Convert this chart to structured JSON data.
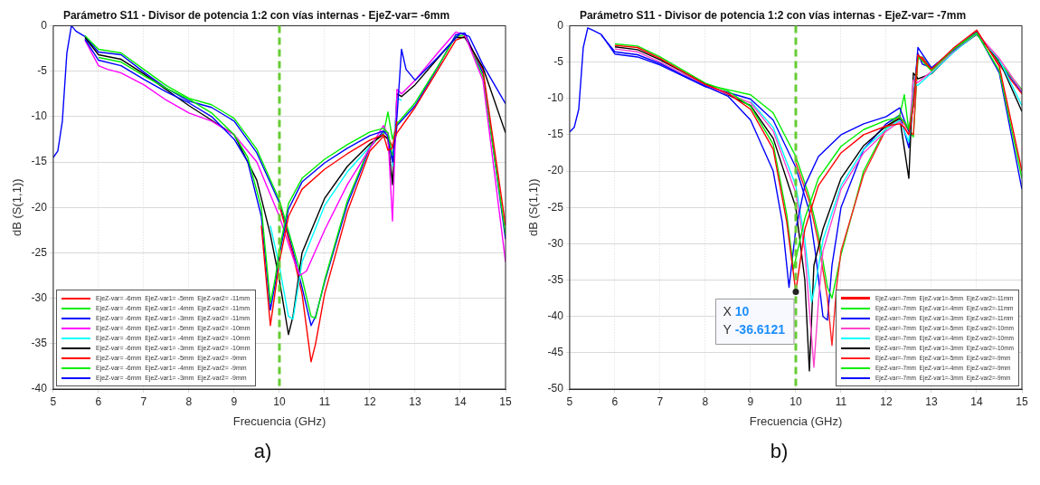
{
  "chart_data": [
    {
      "type": "line",
      "title": "Parámetro S11 - Divisor de potencia 1:2 con vías internas - EjeZ-var= -6mm",
      "xlabel": "Frecuencia (GHz)",
      "ylabel": "dB (S(1,1))",
      "xlim": [
        5,
        15
      ],
      "xticks": [
        5,
        6,
        7,
        8,
        9,
        10,
        11,
        12,
        13,
        14,
        15
      ],
      "ylim": [
        -40,
        0
      ],
      "yticks": [
        -40,
        -35,
        -30,
        -25,
        -20,
        -15,
        -10,
        -5,
        0
      ],
      "grid": true,
      "legend": "bottom left",
      "line_style": "solid",
      "marker": "none",
      "ref_lines": [
        {
          "axis": "x",
          "value": 10,
          "color": "#66cc33",
          "line_style": "dashed"
        }
      ],
      "annotations": [
        "a)"
      ],
      "series": [
        {
          "name": "EjeZ-var= -6mm  EjeZ-var1= -5mm  EjeZ-var2= -11mm",
          "color": "#ff0000",
          "x": [
            9.6,
            9.8,
            9.9,
            10,
            10.2,
            10.5,
            11,
            11.5,
            12,
            12.3,
            12.4,
            12.5,
            12.6
          ],
          "values": [
            -22,
            -33,
            -29.5,
            -26,
            -21,
            -18,
            -15.8,
            -14.1,
            -12.6,
            -12,
            -13.7,
            -13.5,
            -10.5
          ]
        },
        {
          "name": "EjeZ-var= -6mm  EjeZ-var1= -4mm  EjeZ-var2= -11mm",
          "color": "#00ee00",
          "x": [
            6,
            6.5,
            7,
            7.5,
            8,
            8.5,
            9,
            9.3,
            9.6,
            9.8,
            9.9,
            10,
            10.2,
            10.5,
            11,
            11.5,
            12,
            12.3,
            12.4,
            12.5
          ],
          "values": [
            -3.5,
            -4,
            -5.5,
            -6.9,
            -8.1,
            -9.6,
            -12,
            -14.5,
            -20,
            -30.5,
            -28,
            -24.7,
            -19.6,
            -16.8,
            -14.7,
            -13.1,
            -11.7,
            -11.3,
            -11.8,
            -14.3
          ]
        },
        {
          "name": "EjeZ-var= -6mm  EjeZ-var1= -3mm  EjeZ-var2= -11mm",
          "color": "#0000ff",
          "x": [
            5.7,
            6,
            6.5,
            7,
            7.5,
            8,
            8.5,
            9,
            9.3,
            9.6,
            9.8,
            9.9,
            10,
            10.2,
            10.5,
            11,
            11.5,
            12,
            12.3,
            12.4,
            12.5,
            12.6,
            12.7,
            12.8,
            13,
            13.5,
            14,
            14.2,
            14.5,
            15
          ],
          "values": [
            -1.5,
            -3.8,
            -4.4,
            -5.9,
            -7.3,
            -8.5,
            -10,
            -12.5,
            -15,
            -21,
            -31.3,
            -28.6,
            -25.2,
            -20.2,
            -17.2,
            -15.1,
            -13.5,
            -12.1,
            -11.6,
            -12.2,
            -15,
            -10,
            -2.6,
            -4.8,
            -6,
            -3.5,
            -0.8,
            -1.2,
            -4.3,
            -8.6
          ]
        },
        {
          "name": "EjeZ-var= -6mm  EjeZ-var1= -5mm  EjeZ-var2= -10mm",
          "color": "#ff00ff",
          "x": [
            5.7,
            6,
            6.2,
            6.5,
            7,
            7.5,
            8,
            8.5,
            9,
            9.5,
            10,
            10.3,
            10.45,
            10.6,
            11,
            11.5,
            12,
            12.3,
            12.4,
            12.5,
            12.6,
            12.7,
            13,
            13.5,
            13.9,
            14.1,
            14.5,
            15
          ],
          "values": [
            -1.6,
            -4.4,
            -4.8,
            -5.2,
            -6.5,
            -8.2,
            -9.6,
            -10.5,
            -12,
            -15,
            -21,
            -25.5,
            -27.5,
            -27,
            -22.5,
            -17.5,
            -13.5,
            -11,
            -12,
            -21.5,
            -7,
            -7.5,
            -6,
            -3,
            -0.7,
            -1,
            -6,
            -26
          ]
        },
        {
          "name": "EjeZ-var= -6mm  EjeZ-var1= -4mm  EjeZ-var2= -10mm",
          "color": "#00ffff",
          "x": [
            9.8,
            10,
            10.2,
            10.3,
            10.5,
            11,
            11.5,
            12,
            12.3,
            12.4,
            12.5,
            12.6,
            12.7
          ],
          "values": [
            -22,
            -26.5,
            -32,
            -32.3,
            -26,
            -19.8,
            -16.1,
            -13.3,
            null,
            null,
            -15.5,
            -8,
            -8.2
          ]
        },
        {
          "name": "EjeZ-var= -6mm  EjeZ-var1= -3mm  EjeZ-var2= -10mm",
          "color": "#000000",
          "x": [
            5.7,
            6,
            6.5,
            7,
            8,
            9,
            9.5,
            9.8,
            10,
            10.2,
            10.3,
            10.5,
            11,
            11.5,
            12,
            12.3,
            12.4,
            12.5,
            12.6,
            12.7,
            13,
            13.5,
            13.9,
            14.1,
            14.5,
            15
          ],
          "values": [
            -1.3,
            -3.2,
            -3.7,
            -5.3,
            -8.8,
            -12,
            -17,
            -23,
            -28,
            -34,
            -32,
            -25,
            -19,
            -15.5,
            -13,
            -12,
            -12.5,
            -17.5,
            -7.5,
            -7.8,
            -6.5,
            -3.6,
            -1.3,
            -1.3,
            -4.6,
            -11.8
          ]
        },
        {
          "name": "EjeZ-var= -6mm  EjeZ-var1= -5mm  EjeZ-var2= -9mm",
          "color": "#ff0000",
          "x": [
            10,
            10.3,
            10.5,
            10.7,
            10.8,
            11,
            11.5,
            12,
            12.3,
            12.4,
            12.5,
            12.6,
            13,
            13.5,
            13.9,
            14.1,
            14.5,
            15
          ],
          "values": [
            -19.8,
            -25.2,
            -29.5,
            -37,
            -35,
            -29.5,
            -20.5,
            -13.8,
            -12.2,
            -12.3,
            -13.3,
            -11.8,
            -9,
            -4.9,
            -1.6,
            -1.2,
            -4.8,
            -22
          ]
        },
        {
          "name": "EjeZ-var= -6mm  EjeZ-var1= -4mm  EjeZ-var2= -9mm",
          "color": "#00ee00",
          "x": [
            5.7,
            6,
            6.5,
            7,
            7.5,
            8,
            8.5,
            9,
            9.5,
            10,
            10.3,
            10.5,
            10.7,
            10.8,
            11,
            11.5,
            12,
            12.3,
            12.4,
            12.5,
            12.6,
            13,
            13.5,
            13.9,
            14.1,
            14.5,
            15
          ],
          "values": [
            -1.1,
            -2.6,
            -3,
            -4.8,
            -6.6,
            -8,
            -8.7,
            -10.2,
            -13.6,
            -19.2,
            -24.3,
            -27.8,
            -32,
            -32.2,
            -28,
            -19.3,
            -13.2,
            -11.9,
            -9.5,
            -12.5,
            -10.8,
            -8.5,
            -4.5,
            -1.2,
            -1,
            -5.6,
            -23
          ]
        },
        {
          "name": "EjeZ-var= -6mm  EjeZ-var1= -3mm  EjeZ-var2= -9mm",
          "color": "#0000ff",
          "x": [
            5,
            5.1,
            5.2,
            5.3,
            5.4,
            5.5,
            5.7,
            6,
            6.5,
            7,
            7.5,
            8,
            8.5,
            9,
            9.5,
            10,
            10.3,
            10.5,
            10.7,
            10.8,
            11,
            11.5,
            12,
            12.3,
            12.4,
            12.5,
            12.6,
            13,
            13.5,
            13.9,
            14.1,
            14.5,
            15
          ],
          "values": [
            -14.5,
            -13.8,
            -10.5,
            -3,
            0,
            -0.6,
            -1.2,
            -2.9,
            -3.2,
            -5.1,
            -6.9,
            -8.3,
            -9,
            -10.5,
            -14,
            -19.5,
            -24.8,
            -28.8,
            -33,
            -32,
            -28.2,
            -19.7,
            -13.4,
            -11.6,
            -11.8,
            -15,
            -11,
            -8.8,
            -4.6,
            -1,
            -0.8,
            -5.2,
            -23.5
          ]
        }
      ]
    },
    {
      "type": "line",
      "title": "Parámetro S11 - Divisor de potencia 1:2 con vías internas - EjeZ-var= -7mm",
      "xlabel": "Frecuencia (GHz)",
      "ylabel": "dB (S(1,1))",
      "xlim": [
        5,
        15
      ],
      "xticks": [
        5,
        6,
        7,
        8,
        9,
        10,
        11,
        12,
        13,
        14,
        15
      ],
      "ylim": [
        -50,
        0
      ],
      "yticks": [
        -50,
        -45,
        -40,
        -35,
        -30,
        -25,
        -20,
        -15,
        -10,
        -5,
        0
      ],
      "grid": true,
      "legend": "bottom right",
      "line_style": "solid",
      "marker": "none",
      "ref_lines": [
        {
          "axis": "x",
          "value": 10,
          "color": "#66cc33",
          "line_style": "dashed"
        }
      ],
      "annotations": [
        {
          "text": "X 10\nY -36.6121",
          "x": 10,
          "y": -36.6121
        },
        "b)"
      ],
      "series": [
        {
          "name": "EjeZ-var=-7mm  EjeZ-var1=-5mm  EjeZ-var2=-11mm",
          "color": "#ff0000",
          "x": [
            6,
            6.5,
            7,
            7.5,
            8,
            8.5,
            9,
            9.5,
            9.8,
            10,
            10.2,
            10.5,
            11,
            11.5,
            12,
            12.3,
            12.4,
            12.5,
            12.6,
            12.7,
            13,
            13.5,
            14,
            14.5,
            15
          ],
          "values": [
            -2.7,
            -3,
            -4.5,
            -6.3,
            -8.1,
            -9.3,
            -11.5,
            -17,
            -27,
            -36.6,
            -28,
            -22,
            -17.5,
            -15,
            -13.8,
            -13.5,
            -14,
            -15,
            -11,
            -4,
            -6,
            -3,
            -0.6,
            -5.6,
            -20
          ]
        },
        {
          "name": "EjeZ-var=-7mm  EjeZ-var1=-4mm  EjeZ-var2=-11mm",
          "color": "#00ee00",
          "x": [
            6,
            6.5,
            7,
            7.5,
            8,
            8.5,
            9,
            9.5,
            9.8,
            9.95,
            10.2,
            10.5,
            11,
            11.5,
            12,
            12.3,
            12.4,
            12.5,
            12.6,
            12.7,
            13,
            13.5,
            14,
            14.5,
            15
          ],
          "values": [
            -2.5,
            -2.8,
            -4.3,
            -6.1,
            -7.9,
            -9,
            -11.1,
            -16.3,
            -26,
            -33.5,
            -26.5,
            -21,
            -16.6,
            -14.3,
            -13,
            -12.6,
            -13.2,
            -14.3,
            -10.5,
            -4.2,
            -6.2,
            -3.2,
            -1,
            -6.2,
            -21
          ]
        },
        {
          "name": "EjeZ-var=-7mm  EjeZ-var1=-3mm  EjeZ-var2=-11mm",
          "color": "#0000ff",
          "x": [
            5.7,
            6,
            6.5,
            7,
            7.5,
            8,
            8.5,
            9,
            9.5,
            9.7,
            9.85,
            10,
            10.2,
            10.5,
            11,
            11.5,
            12,
            12.3,
            12.4,
            12.5,
            12.6,
            12.7,
            13,
            13.5,
            14,
            14.5,
            15
          ],
          "values": [
            -1.3,
            -3.6,
            -4,
            -5.2,
            -6.8,
            -8.3,
            -9.7,
            -13,
            -20,
            -27,
            -36,
            -28,
            -22,
            -18,
            -15,
            -13.5,
            -12.5,
            -11.3,
            -13,
            -14.5,
            -11,
            -3,
            -5.8,
            -3.3,
            -0.9,
            -6.5,
            -22.5
          ]
        },
        {
          "name": "EjeZ-var=-7mm  EjeZ-var1=-5mm  EjeZ-var2=-10mm",
          "color": "#ff44cc",
          "x": [
            6,
            6.5,
            7,
            8,
            9,
            9.5,
            10,
            10.2,
            10.4,
            10.5,
            10.6,
            11,
            11.5,
            12,
            12.3,
            12.5,
            12.6,
            12.7,
            13,
            13.5,
            14,
            14.5,
            15
          ],
          "values": [
            -3.2,
            -3.6,
            -5,
            -8.2,
            -10.6,
            -14.5,
            -23,
            -31,
            -47,
            -38,
            -31,
            -22.5,
            -17.5,
            -14.5,
            -13.2,
            -15,
            -7.5,
            -7.8,
            -6.3,
            -3.4,
            -1,
            -4.5,
            -9
          ]
        },
        {
          "name": "EjeZ-var=-7mm  EjeZ-var1=-4mm  EjeZ-var2=-10mm",
          "color": "#00ffff",
          "x": [
            9,
            9.5,
            10,
            10.2,
            10.35,
            10.45,
            10.6,
            11,
            11.5,
            12,
            12.3,
            12.5,
            12.6,
            12.7,
            13,
            13.5,
            14,
            14.5,
            15
          ],
          "values": [
            -10.4,
            -14,
            -22,
            -29.5,
            -38,
            -35,
            -29.5,
            -22,
            -17,
            -14.2,
            -13,
            -16,
            -8,
            -8.2,
            -6.5,
            -3.6,
            -1.1,
            -4.7,
            -11
          ]
        },
        {
          "name": "EjeZ-var=-7mm  EjeZ-var1=-3mm  EjeZ-var2=-10mm",
          "color": "#000000",
          "x": [
            6,
            6.5,
            7,
            8,
            9,
            9.5,
            10,
            10.2,
            10.3,
            10.4,
            10.6,
            11,
            11.5,
            12,
            12.3,
            12.5,
            12.6,
            12.7,
            13,
            13.5,
            14,
            14.5,
            15
          ],
          "values": [
            -2.9,
            -3.3,
            -4.7,
            -8,
            -11,
            -15.5,
            -25,
            -35,
            -47.5,
            -33,
            -28,
            -21,
            -16.5,
            -13.8,
            -12.8,
            -21,
            -6.5,
            -7.3,
            -6.6,
            -3.5,
            -1.2,
            -4.8,
            -11.8
          ]
        },
        {
          "name": "EjeZ-var=-7mm  EjeZ-var1=-5mm  EjeZ-var2=-9mm",
          "color": "#ff2222",
          "x": [
            10,
            10.3,
            10.5,
            10.7,
            10.8,
            10.9,
            11,
            11.5,
            12,
            12.3,
            12.5,
            12.6,
            12.7,
            12.8,
            13,
            13.5,
            14,
            14.5,
            15
          ],
          "values": [
            -18.8,
            -24.2,
            -29.8,
            -37.5,
            -44,
            -36,
            -31,
            -20.5,
            -14.2,
            -12.5,
            -14.5,
            -15,
            -4.2,
            -4.4,
            -6.2,
            -3.6,
            -0.7,
            -5.4,
            -9.4
          ]
        },
        {
          "name": "EjeZ-var=-7mm  EjeZ-var1=-4mm  EjeZ-var2=-9mm",
          "color": "#00ee00",
          "x": [
            7.5,
            8,
            8.5,
            9,
            9.5,
            10,
            10.3,
            10.5,
            10.7,
            10.8,
            11,
            11.5,
            12,
            12.3,
            12.4,
            12.5,
            12.6,
            12.7,
            12.8,
            13,
            13.5,
            14,
            14.5,
            15
          ],
          "values": [
            -6.6,
            -8.1,
            -8.8,
            -9.5,
            -12,
            -18,
            -23.5,
            -28.8,
            -36,
            -37.5,
            -31.5,
            -20,
            -14,
            -12.3,
            -9.5,
            -14.5,
            -15.3,
            -4.6,
            -4.3,
            -6,
            -3.1,
            -0.9,
            -5,
            -8.8
          ]
        },
        {
          "name": "EjeZ-var=-7mm  EjeZ-var1=-3mm  EjeZ-var2=-9mm",
          "color": "#0000ff",
          "x": [
            5,
            5.1,
            5.2,
            5.3,
            5.4,
            5.5,
            5.7,
            6,
            6.5,
            7,
            7.5,
            8,
            8.5,
            9,
            9.5,
            10,
            10.3,
            10.45,
            10.6,
            10.7,
            10.8,
            11,
            11.5,
            12,
            12.3,
            12.5,
            12.6,
            12.7,
            12.8,
            13,
            13.5,
            14,
            14.5,
            15
          ],
          "values": [
            -14.6,
            -14,
            -11.5,
            -3,
            -0.3,
            -0.6,
            -1.2,
            -3.9,
            -4.3,
            -5.4,
            -6.9,
            -8.4,
            -9.2,
            -10.1,
            -13,
            -19.5,
            -25.5,
            -32,
            -40,
            -40.5,
            -33,
            -25,
            -17,
            -13.5,
            -12.3,
            -16.8,
            -10,
            -3.8,
            -5.3,
            -5.8,
            -3.3,
            -0.8,
            -5.2,
            -9.2
          ]
        }
      ]
    }
  ]
}
